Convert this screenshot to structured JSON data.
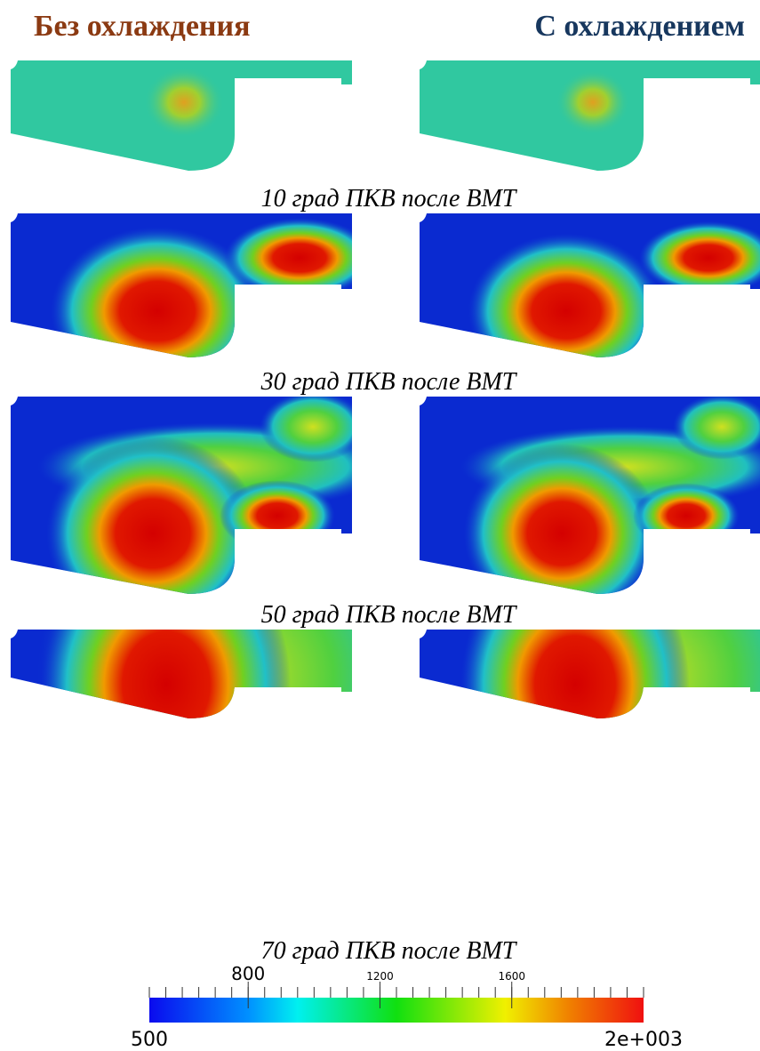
{
  "header": {
    "left_title": "Без охлаждения",
    "right_title": "С охлаждением"
  },
  "captions": [
    "10 град ПКВ после ВМТ",
    "30 град ПКВ после ВМТ",
    "50 град ПКВ после ВМТ",
    "70 град ПКВ после ВМТ"
  ],
  "colorbar": {
    "min": 500,
    "max": {
      "value": 2000,
      "label": "2e+003"
    },
    "ticks": [
      800,
      1200,
      1600
    ]
  }
}
